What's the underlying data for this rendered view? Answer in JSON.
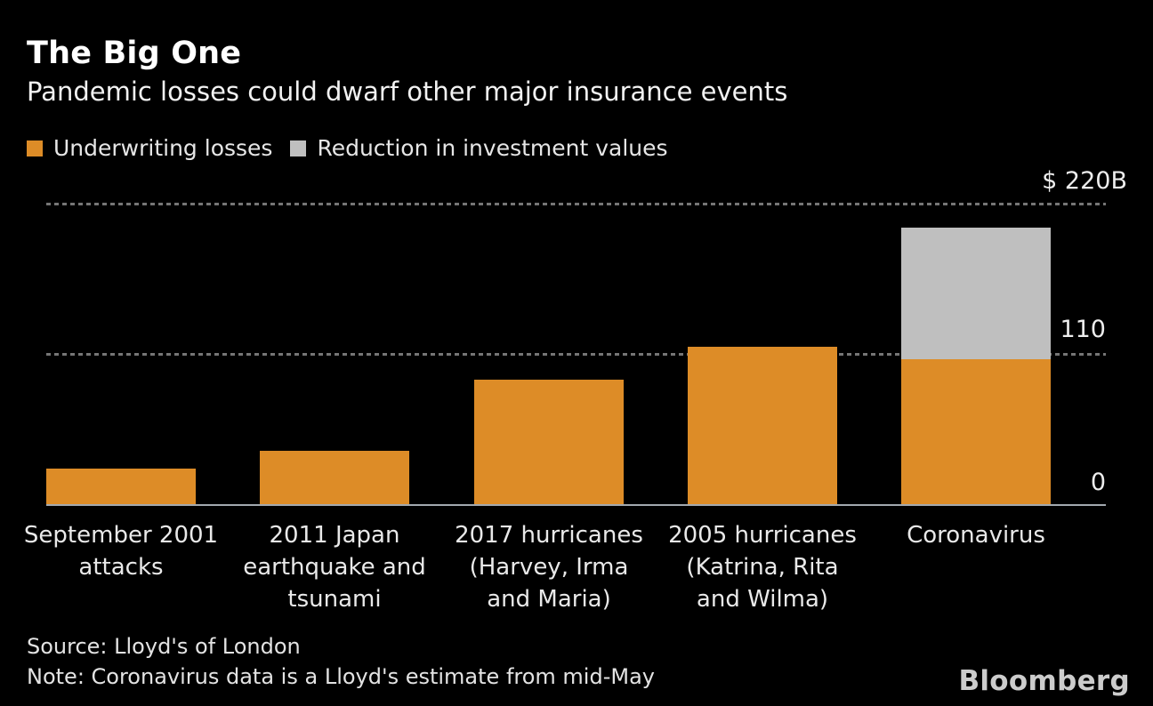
{
  "header": {
    "title": "The Big One",
    "subtitle": "Pandemic losses could dwarf other major insurance events"
  },
  "chart_data": {
    "type": "bar",
    "stacked": true,
    "title": "The Big One",
    "subtitle": "Pandemic losses could dwarf other major insurance events",
    "categories": [
      "September 2001\nattacks",
      "2011 Japan\nearthquake and\ntsunami",
      "2017 hurricanes\n(Harvey, Irma\nand Maria)",
      "2005 hurricanes\n(Katrina, Rita\nand Wilma)",
      "Coronavirus"
    ],
    "series": [
      {
        "name": "Underwriting losses",
        "color": "#DD8C27",
        "values": [
          27,
          40,
          92,
          116,
          107
        ]
      },
      {
        "name": "Reduction in investment values",
        "color": "#BFBFBF",
        "values": [
          0,
          0,
          0,
          0,
          96
        ]
      }
    ],
    "ylim": [
      0,
      220
    ],
    "y_ticks": [
      {
        "label": "$ 220B",
        "value": 220
      },
      {
        "label": "110",
        "value": 110
      },
      {
        "label": "0",
        "value": 0
      }
    ],
    "legend_position": "top-left",
    "grid": "dotted-horizontal"
  },
  "footer": {
    "source": "Source: Lloyd's of London",
    "note": "Note: Coronavirus data is a Lloyd's estimate from mid-May",
    "brand": "Bloomberg"
  },
  "colors": {
    "background": "#000000",
    "grid": "#757575",
    "axis": "#A3A9AF",
    "text": "#FFFFFF"
  }
}
